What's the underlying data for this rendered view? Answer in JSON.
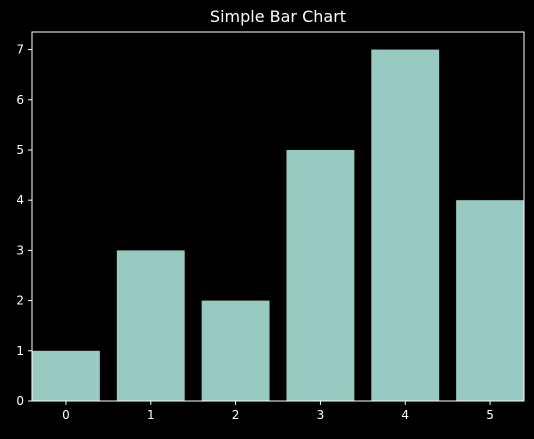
{
  "chart_data": {
    "type": "bar",
    "title": "Simple Bar Chart",
    "xlabel": "",
    "ylabel": "",
    "categories": [
      "0",
      "1",
      "2",
      "3",
      "4",
      "5"
    ],
    "values": [
      1,
      3,
      2,
      5,
      7,
      4
    ],
    "ylim": [
      0,
      7.35
    ],
    "yticks": [
      0,
      1,
      2,
      3,
      4,
      5,
      6,
      7
    ],
    "grid": false,
    "legend": "none",
    "colors": {
      "background": "#000000",
      "bar": "#99cac2",
      "axis": "#ffffff",
      "text": "#ffffff"
    }
  }
}
